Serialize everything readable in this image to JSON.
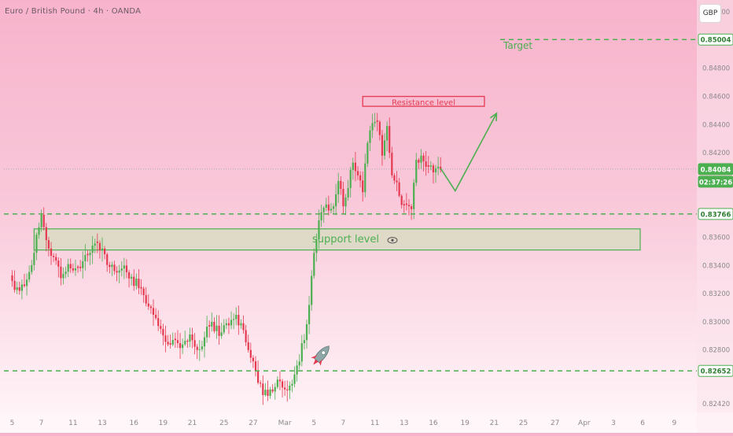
{
  "header": {
    "symbol_title": "Euro / British Pound · 4h · OANDA",
    "currency": "GBP"
  },
  "colors": {
    "up": "#4caf50",
    "down": "#e53950",
    "green_line": "#4caf50",
    "resistance": "#e53950",
    "axis_text": "#8a8a8a"
  },
  "chart_data": {
    "type": "candlestick",
    "instrument": "Euro / British Pound",
    "timeframe": "4h",
    "source": "OANDA",
    "ylim": [
      0.8236,
      0.853
    ],
    "y_ticks": [
      "0.85200",
      "0.84800",
      "0.84600",
      "0.84400",
      "0.84200",
      "0.83600",
      "0.83400",
      "0.83200",
      "0.83000",
      "0.82800",
      "0.82420"
    ],
    "y_tick_values": [
      0.852,
      0.848,
      0.846,
      0.844,
      0.842,
      0.836,
      0.834,
      0.832,
      0.83,
      0.828,
      0.8242
    ],
    "x_ticks": [
      "5",
      "7",
      "11",
      "13",
      "16",
      "19",
      "21",
      "25",
      "27",
      "Mar",
      "5",
      "7",
      "11",
      "13",
      "16",
      "19",
      "21",
      "25",
      "27",
      "Apr",
      "3",
      "6",
      "9"
    ],
    "x_tick_index": [
      0,
      12,
      25,
      37,
      50,
      62,
      74,
      87,
      99,
      112,
      124,
      136,
      149,
      161,
      173,
      186,
      198,
      210,
      223,
      235,
      247,
      259,
      272
    ],
    "last_index": 176,
    "price_labels": [
      {
        "text": "0.85004",
        "value": 0.85004,
        "style": "green-outline"
      },
      {
        "text": "0.84084",
        "value": 0.84084,
        "style": "green-fill"
      },
      {
        "text": "02:37:26",
        "value": 0.83995,
        "style": "green-fill"
      },
      {
        "text": "0.83766",
        "value": 0.83766,
        "style": "green-outline"
      },
      {
        "text": "0.82652",
        "value": 0.82652,
        "style": "green-outline"
      }
    ],
    "current_price": 0.84084,
    "levels": [
      {
        "name": "target",
        "value": 0.85004
      },
      {
        "name": "upper",
        "value": 0.83766
      },
      {
        "name": "lower",
        "value": 0.82652
      }
    ],
    "annotations": {
      "target_label": "Target",
      "resistance_label": "Resistance level",
      "support_label": "support level",
      "support_zone": {
        "low": 0.8351,
        "high": 0.8366,
        "start_index": 9,
        "end_index": 258
      },
      "resistance_box": {
        "low": 0.8453,
        "high": 0.846,
        "start_index": 144,
        "end_index": 194
      },
      "projection": [
        [
          176,
          0.8409
        ],
        [
          182,
          0.8393
        ],
        [
          199,
          0.8448
        ]
      ]
    },
    "anchors": [
      [
        0,
        0.8329
      ],
      [
        3,
        0.8322
      ],
      [
        6,
        0.833
      ],
      [
        9,
        0.8349
      ],
      [
        12,
        0.8376
      ],
      [
        14,
        0.8358
      ],
      [
        17,
        0.8346
      ],
      [
        20,
        0.8331
      ],
      [
        23,
        0.8341
      ],
      [
        26,
        0.8338
      ],
      [
        29,
        0.8343
      ],
      [
        32,
        0.8349
      ],
      [
        35,
        0.8356
      ],
      [
        37,
        0.8352
      ],
      [
        40,
        0.8339
      ],
      [
        43,
        0.8335
      ],
      [
        46,
        0.834
      ],
      [
        49,
        0.8332
      ],
      [
        52,
        0.8324
      ],
      [
        55,
        0.8313
      ],
      [
        58,
        0.8305
      ],
      [
        61,
        0.8295
      ],
      [
        64,
        0.8284
      ],
      [
        67,
        0.8287
      ],
      [
        70,
        0.8284
      ],
      [
        73,
        0.8291
      ],
      [
        76,
        0.828
      ],
      [
        79,
        0.8289
      ],
      [
        82,
        0.83
      ],
      [
        85,
        0.829
      ],
      [
        88,
        0.8299
      ],
      [
        91,
        0.8302
      ],
      [
        94,
        0.8299
      ],
      [
        97,
        0.828
      ],
      [
        100,
        0.8265
      ],
      [
        103,
        0.8248
      ],
      [
        106,
        0.8252
      ],
      [
        109,
        0.8259
      ],
      [
        112,
        0.8252
      ],
      [
        115,
        0.8256
      ],
      [
        117,
        0.8269
      ],
      [
        120,
        0.8287
      ],
      [
        122,
        0.8312
      ],
      [
        124,
        0.8349
      ],
      [
        126,
        0.8372
      ],
      [
        128,
        0.8381
      ],
      [
        130,
        0.8379
      ],
      [
        132,
        0.8382
      ],
      [
        134,
        0.84
      ],
      [
        136,
        0.8382
      ],
      [
        138,
        0.8395
      ],
      [
        140,
        0.8413
      ],
      [
        142,
        0.8404
      ],
      [
        144,
        0.8392
      ],
      [
        146,
        0.8427
      ],
      [
        148,
        0.8441
      ],
      [
        150,
        0.8442
      ],
      [
        152,
        0.8418
      ],
      [
        154,
        0.8439
      ],
      [
        156,
        0.8404
      ],
      [
        158,
        0.8399
      ],
      [
        160,
        0.8383
      ],
      [
        162,
        0.8383
      ],
      [
        164,
        0.838
      ],
      [
        166,
        0.8415
      ],
      [
        168,
        0.8418
      ],
      [
        170,
        0.841
      ],
      [
        172,
        0.8411
      ],
      [
        174,
        0.8409
      ],
      [
        176,
        0.8408
      ]
    ]
  }
}
